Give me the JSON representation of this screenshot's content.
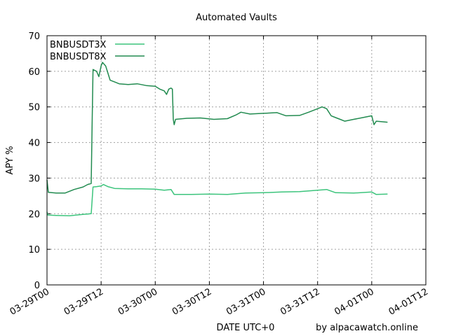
{
  "chart_data": {
    "type": "line",
    "title": "Automated Vaults",
    "xlabel": "DATE UTC+0",
    "ylabel": "APY %",
    "credit": "by alpacawatch.online",
    "ylim": [
      0,
      70
    ],
    "yticks": [
      0,
      10,
      20,
      30,
      40,
      50,
      60,
      70
    ],
    "xlim_hours": [
      0,
      84
    ],
    "xticks": [
      {
        "h": 0,
        "label": "03-29T00"
      },
      {
        "h": 12,
        "label": "03-29T12"
      },
      {
        "h": 24,
        "label": "03-30T00"
      },
      {
        "h": 36,
        "label": "03-30T12"
      },
      {
        "h": 48,
        "label": "03-31T00"
      },
      {
        "h": 60,
        "label": "03-31T12"
      },
      {
        "h": 72,
        "label": "04-01T00"
      },
      {
        "h": 84,
        "label": "04-01T12"
      }
    ],
    "grid": true,
    "legend_position": "top-left",
    "series": [
      {
        "name": "BNBUSDT3X",
        "color": "#3cc47c",
        "points": [
          [
            0,
            20.5
          ],
          [
            0.2,
            19.6
          ],
          [
            2,
            19.5
          ],
          [
            5,
            19.4
          ],
          [
            8,
            19.8
          ],
          [
            9.8,
            20.0
          ],
          [
            10.2,
            27.5
          ],
          [
            11,
            27.6
          ],
          [
            12,
            27.8
          ],
          [
            12.5,
            28.2
          ],
          [
            13.5,
            27.6
          ],
          [
            15,
            27.1
          ],
          [
            18,
            27.0
          ],
          [
            21,
            27.0
          ],
          [
            24,
            26.9
          ],
          [
            26,
            26.6
          ],
          [
            27.5,
            26.8
          ],
          [
            28.2,
            25.4
          ],
          [
            32,
            25.4
          ],
          [
            36,
            25.5
          ],
          [
            40,
            25.4
          ],
          [
            44,
            25.8
          ],
          [
            48,
            25.9
          ],
          [
            52,
            26.1
          ],
          [
            56,
            26.2
          ],
          [
            60,
            26.6
          ],
          [
            62,
            26.8
          ],
          [
            64,
            25.9
          ],
          [
            68,
            25.8
          ],
          [
            72,
            26.1
          ],
          [
            73,
            25.4
          ],
          [
            75.5,
            25.5
          ]
        ]
      },
      {
        "name": "BNBUSDT8X",
        "color": "#228b50",
        "points": [
          [
            0,
            29.5
          ],
          [
            0.3,
            26.0
          ],
          [
            2,
            25.8
          ],
          [
            4,
            25.8
          ],
          [
            6,
            26.8
          ],
          [
            8,
            27.5
          ],
          [
            9,
            28.2
          ],
          [
            9.8,
            28.5
          ],
          [
            10,
            45.0
          ],
          [
            10.2,
            60.5
          ],
          [
            11,
            60.0
          ],
          [
            11.5,
            58.5
          ],
          [
            12,
            61.5
          ],
          [
            12.3,
            62.5
          ],
          [
            13,
            61.5
          ],
          [
            13.5,
            59.5
          ],
          [
            14,
            57.5
          ],
          [
            15,
            57.0
          ],
          [
            16,
            56.5
          ],
          [
            18,
            56.3
          ],
          [
            20,
            56.5
          ],
          [
            22,
            56.0
          ],
          [
            24,
            55.8
          ],
          [
            25,
            55.0
          ],
          [
            26,
            54.5
          ],
          [
            26.5,
            53.5
          ],
          [
            27,
            55.0
          ],
          [
            27.5,
            55.3
          ],
          [
            27.8,
            55.0
          ],
          [
            28.0,
            46.5
          ],
          [
            28.2,
            45.0
          ],
          [
            28.5,
            46.5
          ],
          [
            31,
            46.8
          ],
          [
            34,
            46.9
          ],
          [
            37,
            46.5
          ],
          [
            40,
            46.7
          ],
          [
            42,
            47.8
          ],
          [
            43,
            48.5
          ],
          [
            45,
            48.0
          ],
          [
            48,
            48.2
          ],
          [
            51,
            48.4
          ],
          [
            53,
            47.5
          ],
          [
            56,
            47.6
          ],
          [
            58,
            48.5
          ],
          [
            60,
            49.5
          ],
          [
            61,
            50.0
          ],
          [
            62,
            49.5
          ],
          [
            63,
            47.5
          ],
          [
            64,
            47.0
          ],
          [
            65,
            46.5
          ],
          [
            66,
            46.0
          ],
          [
            68,
            46.5
          ],
          [
            70,
            47.0
          ],
          [
            72,
            47.5
          ],
          [
            72.5,
            45.0
          ],
          [
            73,
            46.0
          ],
          [
            75.5,
            45.7
          ]
        ]
      }
    ]
  }
}
